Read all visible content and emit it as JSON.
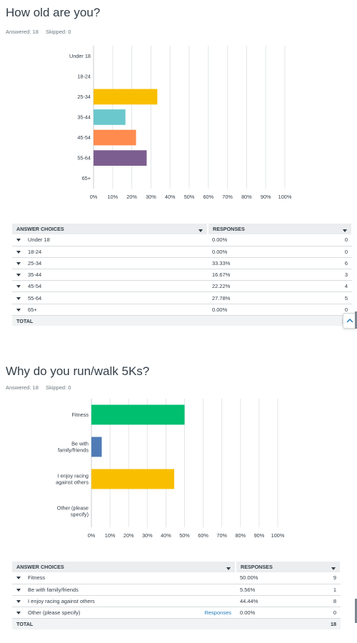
{
  "questions": [
    {
      "title": "How old are you?",
      "answered": "Answered: 18",
      "skipped": "Skipped: 0",
      "table": {
        "headers": [
          "ANSWER CHOICES",
          "RESPONSES"
        ],
        "rows": [
          {
            "label": "Under 18",
            "percent": "0.00%",
            "count": "0"
          },
          {
            "label": "18-24",
            "percent": "0.00%",
            "count": "0"
          },
          {
            "label": "25-34",
            "percent": "33.33%",
            "count": "6"
          },
          {
            "label": "35-44",
            "percent": "16.67%",
            "count": "3"
          },
          {
            "label": "45-54",
            "percent": "22.22%",
            "count": "4"
          },
          {
            "label": "55-64",
            "percent": "27.78%",
            "count": "5"
          },
          {
            "label": "65+",
            "percent": "0.00%",
            "count": "0"
          }
        ],
        "total_label": "TOTAL",
        "total_value": "18"
      }
    },
    {
      "title": "Why do you run/walk 5Ks?",
      "answered": "Answered: 18",
      "skipped": "Skipped: 0",
      "table": {
        "headers": [
          "ANSWER CHOICES",
          "RESPONSES"
        ],
        "rows": [
          {
            "label": "Fitness",
            "percent": "50.00%",
            "count": "9",
            "extra": ""
          },
          {
            "label": "Be with family/friends",
            "percent": "5.56%",
            "count": "1",
            "extra": ""
          },
          {
            "label": "I enjoy racing against others",
            "percent": "44.44%",
            "count": "8",
            "extra": ""
          },
          {
            "label": "Other (please specify)",
            "percent": "0.00%",
            "count": "0",
            "extra": "Responses"
          }
        ],
        "total_label": "TOTAL",
        "total_value": "18"
      }
    }
  ],
  "chart_data": [
    {
      "type": "bar",
      "orientation": "horizontal",
      "categories": [
        "Under 18",
        "18-24",
        "25-34",
        "35-44",
        "45-54",
        "55-64",
        "65+"
      ],
      "category_lines": [
        [
          "Under 18"
        ],
        [
          "18-24"
        ],
        [
          "25-34"
        ],
        [
          "35-44"
        ],
        [
          "45-54"
        ],
        [
          "55-64"
        ],
        [
          "65+"
        ]
      ],
      "values": [
        0,
        0,
        33.33,
        16.67,
        22.22,
        27.78,
        0
      ],
      "colors": [
        "#00bf6f",
        "#507cb6",
        "#f9be00",
        "#6bc8cd",
        "#ff8b4f",
        "#7d5e90",
        "#d25f90"
      ],
      "xticks": [
        "0%",
        "10%",
        "20%",
        "30%",
        "40%",
        "50%",
        "60%",
        "70%",
        "80%",
        "90%",
        "100%"
      ],
      "xlim": [
        0,
        100
      ],
      "grid": true
    },
    {
      "type": "bar",
      "orientation": "horizontal",
      "categories": [
        "Fitness",
        "Be with family/friends",
        "I enjoy racing against others",
        "Other (please specify)"
      ],
      "category_lines": [
        [
          "Fitness"
        ],
        [
          "Be with",
          "family/friends"
        ],
        [
          "I enjoy racing",
          "against others"
        ],
        [
          "Other (please",
          "specify)"
        ]
      ],
      "values": [
        50.0,
        5.56,
        44.44,
        0
      ],
      "colors": [
        "#00bf6f",
        "#507cb6",
        "#f9be00",
        "#6bc8cd"
      ],
      "xticks": [
        "0%",
        "10%",
        "20%",
        "30%",
        "40%",
        "50%",
        "60%",
        "70%",
        "80%",
        "90%",
        "100%"
      ],
      "xlim": [
        0,
        100
      ],
      "grid": true
    }
  ]
}
